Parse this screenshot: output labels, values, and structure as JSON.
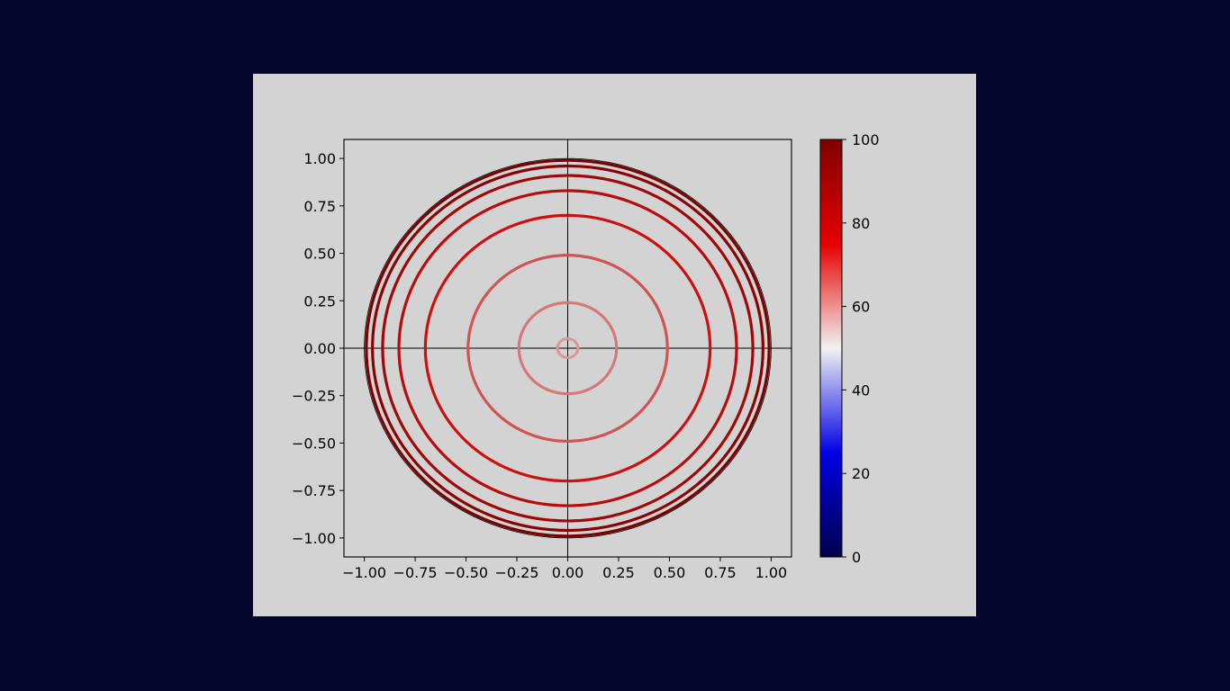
{
  "background_color": "#03052b",
  "figure_color": "#d3d3d3",
  "chart_data": {
    "type": "line",
    "title": "",
    "xlabel": "",
    "ylabel": "",
    "xlim": [
      -1.1,
      1.1
    ],
    "ylim": [
      -1.1,
      1.1
    ],
    "x_ticks": [
      {
        "value": -1.0,
        "label": "−1.00"
      },
      {
        "value": -0.75,
        "label": "−0.75"
      },
      {
        "value": -0.5,
        "label": "−0.50"
      },
      {
        "value": -0.25,
        "label": "−0.25"
      },
      {
        "value": 0.0,
        "label": "0.00"
      },
      {
        "value": 0.25,
        "label": "0.25"
      },
      {
        "value": 0.5,
        "label": "0.50"
      },
      {
        "value": 0.75,
        "label": "0.75"
      },
      {
        "value": 1.0,
        "label": "1.00"
      }
    ],
    "y_ticks": [
      {
        "value": 1.0,
        "label": "1.00"
      },
      {
        "value": 0.75,
        "label": "0.75"
      },
      {
        "value": 0.5,
        "label": "0.50"
      },
      {
        "value": 0.25,
        "label": "0.25"
      },
      {
        "value": 0.0,
        "label": "0.00"
      },
      {
        "value": -0.25,
        "label": "−0.25"
      },
      {
        "value": -0.5,
        "label": "−0.50"
      },
      {
        "value": -0.75,
        "label": "−0.75"
      },
      {
        "value": -1.0,
        "label": "−1.00"
      }
    ],
    "reference_lines": {
      "x": 0,
      "y": 0
    },
    "unit_circle": {
      "radius": 1.0,
      "color": "#000000"
    },
    "circles": [
      {
        "radius": 0.05,
        "value": 57,
        "color": "#d79a9a"
      },
      {
        "radius": 0.24,
        "value": 64,
        "color": "#d67878"
      },
      {
        "radius": 0.49,
        "value": 68,
        "color": "#d05454"
      },
      {
        "radius": 0.7,
        "value": 76,
        "color": "#cc1010"
      },
      {
        "radius": 0.83,
        "value": 82,
        "color": "#b80c0c"
      },
      {
        "radius": 0.91,
        "value": 88,
        "color": "#a00808"
      },
      {
        "radius": 0.96,
        "value": 93,
        "color": "#880404"
      },
      {
        "radius": 0.99,
        "value": 97,
        "color": "#760202"
      }
    ],
    "colorbar": {
      "range": [
        0,
        100
      ],
      "cmap": "seismic",
      "ticks": [
        {
          "value": 100,
          "label": "100"
        },
        {
          "value": 80,
          "label": "80"
        },
        {
          "value": 60,
          "label": "60"
        },
        {
          "value": 40,
          "label": "40"
        },
        {
          "value": 20,
          "label": "20"
        },
        {
          "value": 0,
          "label": "0"
        }
      ]
    }
  }
}
